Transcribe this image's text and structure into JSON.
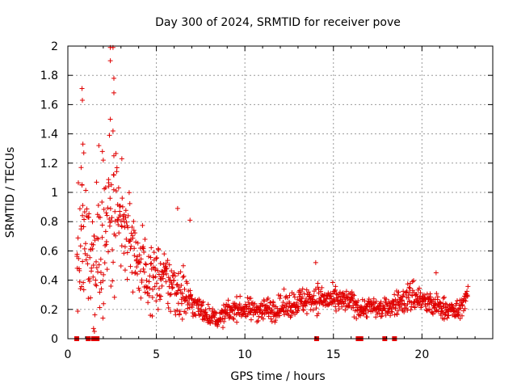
{
  "chart_data": {
    "type": "scatter",
    "title": "Day 300 of 2024, SRMTID for receiver pove",
    "xlabel": "GPS time / hours",
    "ylabel": "SRMTID / TECUs",
    "xlim": [
      0,
      24
    ],
    "ylim": [
      0,
      2
    ],
    "x_ticks": [
      0,
      5,
      10,
      15,
      20
    ],
    "x_tick_labels": [
      "0",
      "5",
      "10",
      "15",
      "20"
    ],
    "y_ticks": [
      0,
      0.2,
      0.4,
      0.6,
      0.8,
      1,
      1.2,
      1.4,
      1.6,
      1.8,
      2
    ],
    "y_tick_labels": [
      "0",
      "0.2",
      "0.4",
      "0.6",
      "0.8",
      "1",
      "1.2",
      "1.4",
      "1.6",
      "1.8",
      "2"
    ],
    "grid": true,
    "marker": "plus",
    "color": "#e00000",
    "outage_markers_at_zero": [
      0.5,
      1.15,
      1.45,
      1.65,
      14.05,
      16.4,
      16.55,
      17.9,
      18.45
    ],
    "series": [
      {
        "name": "SRMTID",
        "profile": {
          "x": [
            0.5,
            1.0,
            1.5,
            2.0,
            2.5,
            3.0,
            3.5,
            4.0,
            4.5,
            5.0,
            5.5,
            6.0,
            6.5,
            7.0,
            7.5,
            8.0,
            8.5,
            9.0,
            9.5,
            10.0,
            11.0,
            12.0,
            13.0,
            14.0,
            15.0,
            16.0,
            16.6,
            17.0,
            17.8,
            18.5,
            19.0,
            19.5,
            20.0,
            20.5,
            21.0,
            21.5,
            22.0,
            22.6
          ],
          "median": [
            0.55,
            0.65,
            0.55,
            0.7,
            0.75,
            0.75,
            0.7,
            0.52,
            0.42,
            0.42,
            0.4,
            0.35,
            0.32,
            0.24,
            0.2,
            0.16,
            0.13,
            0.18,
            0.21,
            0.2,
            0.2,
            0.21,
            0.25,
            0.28,
            0.26,
            0.25,
            0.2,
            0.22,
            0.2,
            0.24,
            0.26,
            0.3,
            0.26,
            0.23,
            0.22,
            0.2,
            0.18,
            0.3
          ],
          "spread": [
            0.35,
            0.45,
            0.4,
            0.5,
            0.55,
            0.35,
            0.3,
            0.25,
            0.22,
            0.22,
            0.2,
            0.22,
            0.2,
            0.09,
            0.08,
            0.06,
            0.05,
            0.08,
            0.07,
            0.07,
            0.08,
            0.08,
            0.09,
            0.1,
            0.08,
            0.08,
            0.06,
            0.07,
            0.06,
            0.08,
            0.09,
            0.12,
            0.09,
            0.08,
            0.08,
            0.07,
            0.07,
            0.05
          ]
        },
        "count": 1200,
        "peaks": [
          {
            "x": 0.8,
            "y": 1.71
          },
          {
            "x": 0.82,
            "y": 1.63
          },
          {
            "x": 0.85,
            "y": 1.33
          },
          {
            "x": 0.9,
            "y": 1.27
          },
          {
            "x": 0.75,
            "y": 1.17
          },
          {
            "x": 0.8,
            "y": 1.05
          },
          {
            "x": 1.75,
            "y": 1.32
          },
          {
            "x": 1.95,
            "y": 1.28
          },
          {
            "x": 2.0,
            "y": 1.22
          },
          {
            "x": 2.4,
            "y": 1.99
          },
          {
            "x": 2.55,
            "y": 1.99
          },
          {
            "x": 2.4,
            "y": 1.9
          },
          {
            "x": 2.6,
            "y": 1.78
          },
          {
            "x": 2.6,
            "y": 1.68
          },
          {
            "x": 2.4,
            "y": 1.5
          },
          {
            "x": 2.55,
            "y": 1.42
          },
          {
            "x": 2.35,
            "y": 1.39
          },
          {
            "x": 2.6,
            "y": 1.25
          },
          {
            "x": 3.05,
            "y": 1.23
          },
          {
            "x": 14.0,
            "y": 0.52
          },
          {
            "x": 6.2,
            "y": 0.89
          },
          {
            "x": 6.9,
            "y": 0.81
          },
          {
            "x": 1.45,
            "y": 0.07
          },
          {
            "x": 1.5,
            "y": 0.05
          },
          {
            "x": 20.8,
            "y": 0.45
          }
        ]
      }
    ]
  }
}
